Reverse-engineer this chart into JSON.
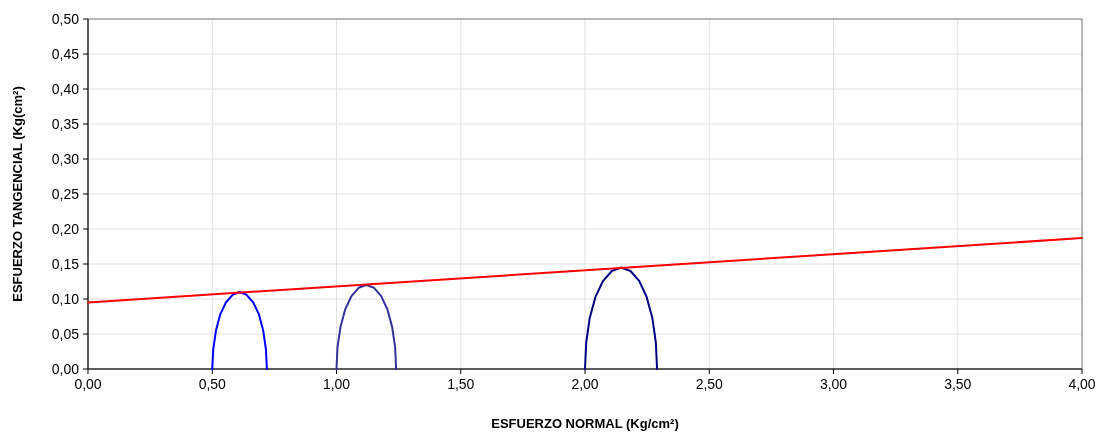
{
  "chart_data": {
    "type": "line",
    "xlabel": "ESFUERZO NORMAL (Kg/cm²)",
    "ylabel": "ESFUERZO TANGENCIAL (Kg(cm²)",
    "xlim": [
      0,
      4
    ],
    "ylim": [
      0,
      0.5
    ],
    "xticks": [
      {
        "value": 0,
        "label": "0,00"
      },
      {
        "value": 0.5,
        "label": "0,50"
      },
      {
        "value": 1,
        "label": "1,00"
      },
      {
        "value": 1.5,
        "label": "1,50"
      },
      {
        "value": 2,
        "label": "2,00"
      },
      {
        "value": 2.5,
        "label": "2,50"
      },
      {
        "value": 3,
        "label": "3,00"
      },
      {
        "value": 3.5,
        "label": "3,50"
      },
      {
        "value": 4,
        "label": "4,00"
      }
    ],
    "yticks": [
      {
        "value": 0,
        "label": "0,00"
      },
      {
        "value": 0.05,
        "label": "0,05"
      },
      {
        "value": 0.1,
        "label": "0,10"
      },
      {
        "value": 0.15,
        "label": "0,15"
      },
      {
        "value": 0.2,
        "label": "0,20"
      },
      {
        "value": 0.25,
        "label": "0,25"
      },
      {
        "value": 0.3,
        "label": "0,30"
      },
      {
        "value": 0.35,
        "label": "0,35"
      },
      {
        "value": 0.4,
        "label": "0,40"
      },
      {
        "value": 0.45,
        "label": "0,45"
      },
      {
        "value": 0.5,
        "label": "0,50"
      }
    ],
    "grid": true,
    "marker": "none",
    "line_style": "solid",
    "series": [
      {
        "color": "#0000ff",
        "x": [
          0.5,
          0.504,
          0.515,
          0.532,
          0.555,
          0.582,
          0.61,
          0.638,
          0.665,
          0.688,
          0.705,
          0.716,
          0.72
        ],
        "values": [
          0,
          0.028,
          0.055,
          0.078,
          0.095,
          0.106,
          0.11,
          0.106,
          0.095,
          0.078,
          0.055,
          0.028,
          0
        ]
      },
      {
        "color": "#333399",
        "x": [
          1.0,
          1.004,
          1.016,
          1.035,
          1.06,
          1.089,
          1.12,
          1.151,
          1.18,
          1.205,
          1.224,
          1.236,
          1.24
        ],
        "values": [
          0,
          0.031,
          0.06,
          0.085,
          0.104,
          0.116,
          0.12,
          0.116,
          0.104,
          0.085,
          0.06,
          0.031,
          0
        ]
      },
      {
        "color": "#000080",
        "x": [
          2.0,
          2.005,
          2.019,
          2.042,
          2.073,
          2.108,
          2.145,
          2.183,
          2.218,
          2.248,
          2.271,
          2.285,
          2.29
        ],
        "values": [
          0,
          0.038,
          0.073,
          0.103,
          0.126,
          0.14,
          0.145,
          0.14,
          0.126,
          0.103,
          0.073,
          0.038,
          0
        ]
      },
      {
        "color": "#ff0000",
        "x": [
          0,
          4
        ],
        "values": [
          0.095,
          0.187
        ]
      }
    ]
  }
}
